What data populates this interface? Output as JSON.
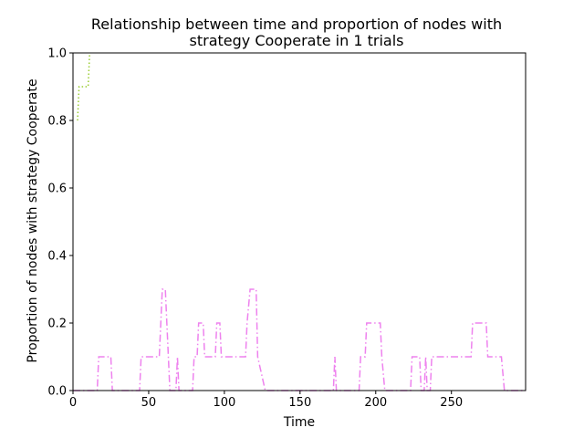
{
  "chart_data": {
    "type": "line",
    "title": "Relationship between time and proportion of nodes with strategy Cooperate in 1 trials",
    "title_lines": [
      "Relationship between time and proportion of nodes with",
      "strategy Cooperate in 1 trials"
    ],
    "xlabel": "Time",
    "ylabel": "Proportion of nodes with strategy Cooperate",
    "xlim": [
      0,
      299
    ],
    "ylim": [
      0,
      1.0
    ],
    "xticks": [
      0,
      50,
      100,
      150,
      200,
      250
    ],
    "yticks": [
      0.0,
      0.2,
      0.4,
      0.6,
      0.8,
      1.0
    ],
    "ytick_labels": [
      "0.0",
      "0.2",
      "0.4",
      "0.6",
      "0.8",
      "1.0"
    ],
    "grid": false,
    "series": [
      {
        "color": "#9acd32",
        "style": "dotted",
        "points": [
          [
            3,
            0.8
          ],
          [
            4,
            0.9
          ],
          [
            10,
            0.9
          ],
          [
            11,
            1.0
          ]
        ]
      },
      {
        "color": "#ee82ee",
        "style": "dashdot",
        "points": [
          [
            0,
            0.0
          ],
          [
            16,
            0.0
          ],
          [
            17,
            0.1
          ],
          [
            25,
            0.1
          ],
          [
            26,
            0.0
          ],
          [
            44,
            0.0
          ],
          [
            45,
            0.1
          ],
          [
            57,
            0.1
          ],
          [
            58,
            0.2
          ],
          [
            59,
            0.3
          ],
          [
            61,
            0.3
          ],
          [
            64,
            0.0
          ],
          [
            68,
            0.0
          ],
          [
            69,
            0.1
          ],
          [
            70,
            0.0
          ],
          [
            79,
            0.0
          ],
          [
            80,
            0.1
          ],
          [
            82,
            0.1
          ],
          [
            83,
            0.2
          ],
          [
            86,
            0.2
          ],
          [
            87,
            0.1
          ],
          [
            94,
            0.1
          ],
          [
            95,
            0.2
          ],
          [
            97,
            0.2
          ],
          [
            98,
            0.1
          ],
          [
            114,
            0.1
          ],
          [
            115,
            0.2
          ],
          [
            117,
            0.3
          ],
          [
            121,
            0.3
          ],
          [
            122,
            0.1
          ],
          [
            127,
            0.0
          ],
          [
            172,
            0.0
          ],
          [
            173,
            0.1
          ],
          [
            174,
            0.0
          ],
          [
            189,
            0.0
          ],
          [
            190,
            0.1
          ],
          [
            193,
            0.1
          ],
          [
            194,
            0.2
          ],
          [
            203,
            0.2
          ],
          [
            204,
            0.1
          ],
          [
            206,
            0.0
          ],
          [
            223,
            0.0
          ],
          [
            224,
            0.1
          ],
          [
            229,
            0.1
          ],
          [
            230,
            0.0
          ],
          [
            232,
            0.0
          ],
          [
            233,
            0.1
          ],
          [
            234,
            0.0
          ],
          [
            236,
            0.0
          ],
          [
            237,
            0.1
          ],
          [
            263,
            0.1
          ],
          [
            264,
            0.2
          ],
          [
            273,
            0.2
          ],
          [
            274,
            0.1
          ],
          [
            283,
            0.1
          ],
          [
            285,
            0.0
          ],
          [
            299,
            0.0
          ]
        ]
      }
    ]
  }
}
